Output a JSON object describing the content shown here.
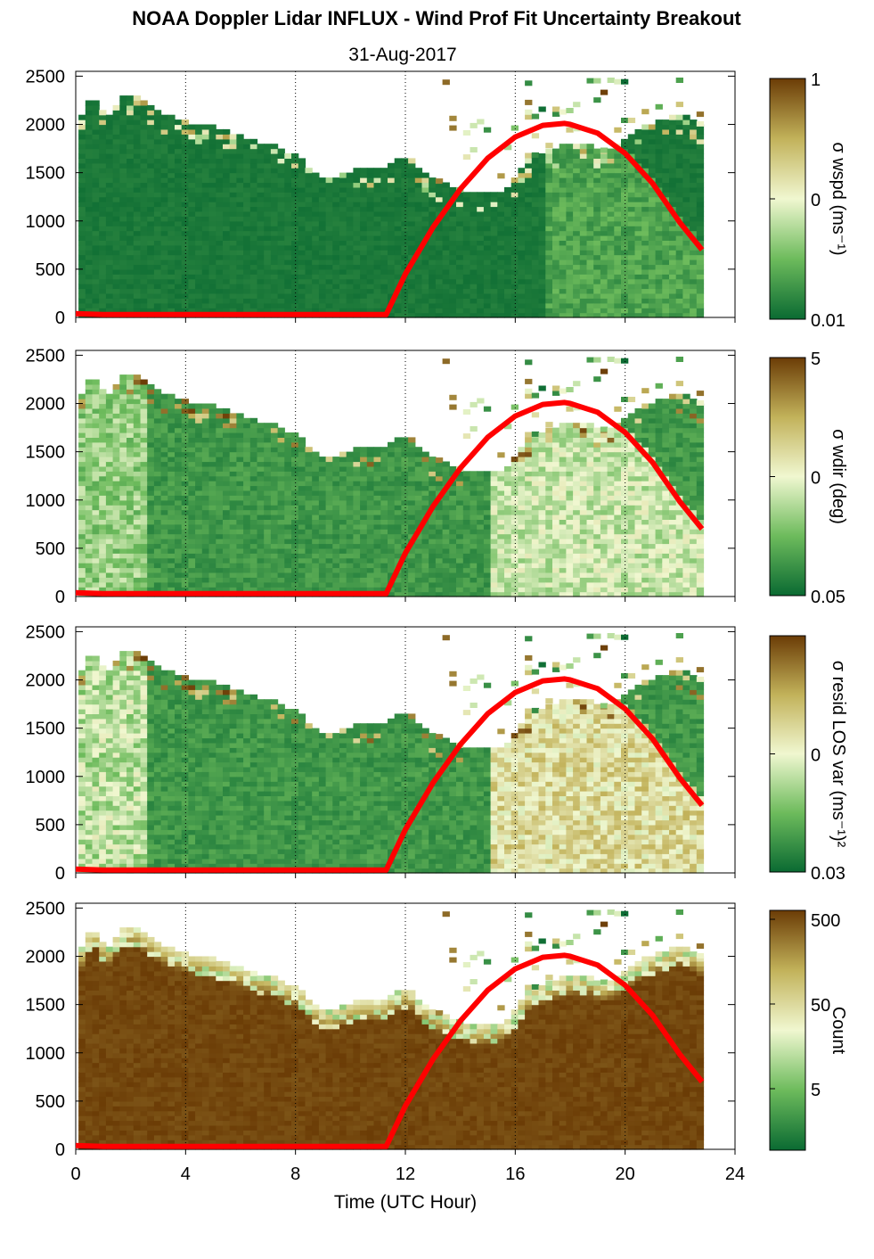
{
  "figure": {
    "title": "NOAA Doppler Lidar INFLUX - Wind Prof Fit Uncertainty Breakout",
    "subtitle": "31-Aug-2017",
    "xlabel": "Time (UTC Hour)",
    "x_ticks": [
      "0",
      "4",
      "8",
      "12",
      "16",
      "20",
      "24"
    ],
    "y_ticks": [
      "0",
      "500",
      "1000",
      "1500",
      "2000",
      "2500"
    ]
  },
  "colors": {
    "low": "#0a6a32",
    "mid_low": "#6dbb5c",
    "mid": "#f0f7d0",
    "mid_high": "#c2b25a",
    "high": "#6b3c06",
    "curve": "#ff0000"
  },
  "chart_data": [
    {
      "type": "heatmap",
      "ylabel": "",
      "colorbar_label": "σ wspd (ms⁻¹)",
      "colorbar_ticks": [
        "1",
        "0",
        "0.01"
      ],
      "scale": "log",
      "xlim": [
        0,
        24
      ],
      "ylim": [
        0,
        2550
      ],
      "overlay_line": {
        "x": [
          0,
          1,
          2,
          3,
          4,
          5,
          6,
          7,
          8,
          9,
          10,
          11,
          11.3,
          12,
          13,
          14,
          15,
          16,
          17,
          17.8,
          18,
          19,
          20,
          21,
          22,
          22.8
        ],
        "y": [
          40,
          30,
          30,
          30,
          30,
          30,
          30,
          30,
          30,
          30,
          30,
          30,
          30,
          450,
          930,
          1330,
          1650,
          1870,
          1990,
          2010,
          2000,
          1910,
          1700,
          1390,
          980,
          700
        ]
      }
    },
    {
      "type": "heatmap",
      "ylabel": "",
      "colorbar_label": "σ wdir (deg)",
      "colorbar_ticks": [
        "5",
        "0",
        "0.05"
      ],
      "scale": "log",
      "xlim": [
        0,
        24
      ],
      "ylim": [
        0,
        2550
      ],
      "overlay_line": {
        "x": [
          0,
          1,
          2,
          3,
          4,
          5,
          6,
          7,
          8,
          9,
          10,
          11,
          11.3,
          12,
          13,
          14,
          15,
          16,
          17,
          17.8,
          18,
          19,
          20,
          21,
          22,
          22.8
        ],
        "y": [
          40,
          30,
          30,
          30,
          30,
          30,
          30,
          30,
          30,
          30,
          30,
          30,
          30,
          450,
          930,
          1330,
          1650,
          1870,
          1990,
          2010,
          2000,
          1910,
          1700,
          1390,
          980,
          700
        ]
      }
    },
    {
      "type": "heatmap",
      "ylabel": "",
      "colorbar_label": "σ resid LOS var (ms⁻¹)²",
      "colorbar_ticks": [
        "0",
        "0.03"
      ],
      "scale": "log",
      "xlim": [
        0,
        24
      ],
      "ylim": [
        0,
        2550
      ],
      "overlay_line": {
        "x": [
          0,
          1,
          2,
          3,
          4,
          5,
          6,
          7,
          8,
          9,
          10,
          11,
          11.3,
          12,
          13,
          14,
          15,
          16,
          17,
          17.8,
          18,
          19,
          20,
          21,
          22,
          22.8
        ],
        "y": [
          40,
          30,
          30,
          30,
          30,
          30,
          30,
          30,
          30,
          30,
          30,
          30,
          30,
          450,
          930,
          1330,
          1650,
          1870,
          1990,
          2010,
          2000,
          1910,
          1700,
          1390,
          980,
          700
        ]
      }
    },
    {
      "type": "heatmap",
      "ylabel": "",
      "colorbar_label": "Count",
      "colorbar_ticks": [
        "500",
        "50",
        "5"
      ],
      "scale": "log",
      "xlim": [
        0,
        24
      ],
      "ylim": [
        0,
        2550
      ],
      "overlay_line": {
        "x": [
          0,
          1,
          2,
          3,
          4,
          5,
          6,
          7,
          8,
          9,
          10,
          11,
          11.3,
          12,
          13,
          14,
          15,
          16,
          17,
          17.8,
          18,
          19,
          20,
          21,
          22,
          22.8
        ],
        "y": [
          40,
          30,
          30,
          30,
          30,
          30,
          30,
          30,
          30,
          30,
          30,
          30,
          30,
          450,
          930,
          1330,
          1650,
          1870,
          1990,
          2010,
          2000,
          1910,
          1700,
          1390,
          980,
          700
        ]
      }
    }
  ],
  "data_top_envelope": {
    "x": [
      0,
      0.5,
      1,
      1.5,
      2,
      2.5,
      3,
      3.5,
      4,
      4.5,
      5,
      5.5,
      6,
      6.5,
      7,
      7.5,
      8,
      8.5,
      9,
      9.5,
      10,
      10.5,
      11,
      11.5,
      12,
      12.5,
      13,
      13.5,
      14,
      14.5,
      15,
      15.5,
      16,
      16.5,
      17,
      17.5,
      18,
      18.5,
      19,
      19.5,
      20,
      20.5,
      21,
      21.5,
      22,
      22.5,
      22.8
    ],
    "y": [
      2000,
      2300,
      2050,
      2250,
      2300,
      2200,
      2100,
      2050,
      2000,
      1980,
      1950,
      1900,
      1850,
      1800,
      1780,
      1700,
      1650,
      1500,
      1400,
      1450,
      1500,
      1520,
      1500,
      1600,
      1650,
      1500,
      1400,
      1350,
      1300,
      1250,
      1280,
      1300,
      1500,
      1650,
      1700,
      1750,
      1780,
      1800,
      1700,
      1750,
      1850,
      1950,
      2000,
      2050,
      2100,
      2000,
      1950
    ]
  }
}
